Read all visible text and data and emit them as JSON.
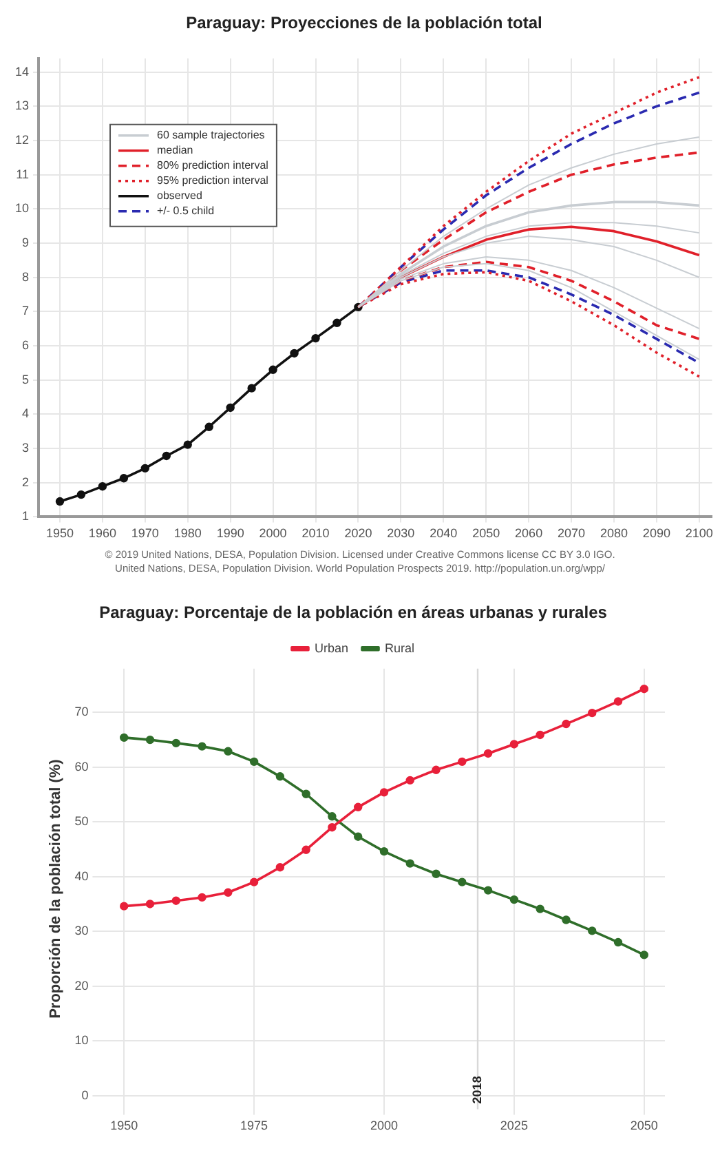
{
  "chart_data": [
    {
      "type": "line",
      "title": "Paraguay: Proyecciones de la población total",
      "grid": true,
      "legend": "top left",
      "xlim": [
        1945,
        2103
      ],
      "xticks": [
        1950,
        1960,
        1970,
        1980,
        1990,
        2000,
        2010,
        2020,
        2030,
        2040,
        2050,
        2060,
        2070,
        2080,
        2090,
        2100
      ],
      "ylim": [
        1,
        14.4
      ],
      "yticks": [
        1,
        2,
        3,
        4,
        5,
        6,
        7,
        8,
        9,
        10,
        11,
        12,
        13,
        14
      ],
      "series": [
        {
          "name": "60 sample trajectories",
          "color": "#c8cdd2",
          "line_style": "solid",
          "marker": "none",
          "x": [
            2020,
            2030,
            2040,
            2050,
            2060,
            2070,
            2080,
            2090,
            2100
          ],
          "values": [
            7.13,
            8.1,
            8.9,
            9.5,
            9.9,
            10.1,
            10.2,
            10.2,
            10.1
          ]
        },
        {
          "color": "#c8cdd2",
          "line_style": "solid",
          "marker": "none",
          "x": [
            2020,
            2030,
            2040,
            2050,
            2060,
            2070,
            2080,
            2090,
            2100
          ],
          "values": [
            7.13,
            8.0,
            8.6,
            9.0,
            9.2,
            9.1,
            8.9,
            8.5,
            8.0
          ]
        },
        {
          "color": "#c8cdd2",
          "line_style": "solid",
          "marker": "none",
          "x": [
            2020,
            2030,
            2040,
            2050,
            2060,
            2070,
            2080,
            2090,
            2100
          ],
          "values": [
            7.13,
            7.95,
            8.4,
            8.6,
            8.5,
            8.2,
            7.7,
            7.1,
            6.5
          ]
        },
        {
          "color": "#c8cdd2",
          "line_style": "solid",
          "marker": "none",
          "x": [
            2020,
            2030,
            2040,
            2050,
            2060,
            2070,
            2080,
            2090,
            2100
          ],
          "values": [
            7.13,
            8.2,
            9.2,
            10.0,
            10.7,
            11.2,
            11.6,
            11.9,
            12.1
          ]
        },
        {
          "color": "#c8cdd2",
          "line_style": "solid",
          "marker": "none",
          "x": [
            2020,
            2030,
            2040,
            2050,
            2060,
            2070,
            2080,
            2090,
            2100
          ],
          "values": [
            7.13,
            8.05,
            8.7,
            9.2,
            9.5,
            9.6,
            9.6,
            9.5,
            9.3
          ]
        },
        {
          "color": "#c8cdd2",
          "line_style": "solid",
          "marker": "none",
          "x": [
            2020,
            2030,
            2040,
            2050,
            2060,
            2070,
            2080,
            2090,
            2100
          ],
          "values": [
            7.13,
            7.9,
            8.3,
            8.4,
            8.2,
            7.7,
            7.0,
            6.3,
            5.6
          ]
        },
        {
          "name": "median",
          "color": "#e0202a",
          "line_style": "solid",
          "marker": "none",
          "x": [
            2020,
            2030,
            2040,
            2050,
            2060,
            2070,
            2080,
            2090,
            2100
          ],
          "values": [
            7.13,
            8.0,
            8.6,
            9.1,
            9.4,
            9.48,
            9.35,
            9.05,
            8.65
          ]
        },
        {
          "name": "80% prediction interval",
          "color": "#e0202a",
          "line_style": "dashed",
          "marker": "none",
          "x": [
            2020,
            2030,
            2040,
            2050,
            2060,
            2070,
            2080,
            2090,
            2100
          ],
          "values": [
            7.13,
            8.2,
            9.1,
            9.9,
            10.5,
            11.0,
            11.3,
            11.5,
            11.65
          ]
        },
        {
          "color": "#e0202a",
          "line_style": "dashed",
          "marker": "none",
          "x": [
            2020,
            2030,
            2040,
            2050,
            2060,
            2070,
            2080,
            2090,
            2100
          ],
          "values": [
            7.13,
            7.9,
            8.3,
            8.45,
            8.3,
            7.9,
            7.3,
            6.6,
            6.2
          ]
        },
        {
          "name": "95% prediction interval",
          "color": "#e0202a",
          "line_style": "dotted",
          "marker": "none",
          "x": [
            2020,
            2030,
            2040,
            2050,
            2060,
            2070,
            2080,
            2090,
            2100
          ],
          "values": [
            7.13,
            8.3,
            9.5,
            10.5,
            11.4,
            12.2,
            12.8,
            13.4,
            13.85
          ]
        },
        {
          "color": "#e0202a",
          "line_style": "dotted",
          "marker": "none",
          "x": [
            2020,
            2030,
            2040,
            2050,
            2060,
            2070,
            2080,
            2090,
            2100
          ],
          "values": [
            7.13,
            7.8,
            8.1,
            8.15,
            7.9,
            7.3,
            6.6,
            5.8,
            5.1
          ]
        },
        {
          "name": "observed",
          "color": "#111111",
          "line_style": "solid",
          "marker": "circle",
          "x": [
            1950,
            1955,
            1960,
            1965,
            1970,
            1975,
            1980,
            1985,
            1990,
            1995,
            2000,
            2005,
            2010,
            2015,
            2020
          ],
          "values": [
            1.45,
            1.65,
            1.89,
            2.13,
            2.42,
            2.78,
            3.11,
            3.63,
            4.19,
            4.76,
            5.3,
            5.78,
            6.22,
            6.67,
            7.13
          ]
        },
        {
          "name": "+/- 0.5 child",
          "color": "#2a2ab0",
          "line_style": "dashed",
          "marker": "none",
          "x": [
            2020,
            2030,
            2040,
            2050,
            2060,
            2070,
            2080,
            2090,
            2100
          ],
          "values": [
            7.13,
            8.3,
            9.4,
            10.4,
            11.2,
            11.9,
            12.5,
            13.0,
            13.4
          ]
        },
        {
          "color": "#2a2ab0",
          "line_style": "dashed",
          "marker": "none",
          "x": [
            2020,
            2030,
            2040,
            2050,
            2060,
            2070,
            2080,
            2090,
            2100
          ],
          "values": [
            7.13,
            7.85,
            8.2,
            8.2,
            8.0,
            7.5,
            6.9,
            6.2,
            5.5
          ]
        }
      ],
      "annotations": [
        "© 2019 United Nations, DESA, Population Division. Licensed under Creative Commons license CC BY 3.0 IGO.",
        "United Nations, DESA, Population Division. World Population Prospects 2019. http://population.un.org/wpp/"
      ]
    },
    {
      "type": "line",
      "title": "Paraguay: Porcentaje de la población en áreas urbanas y rurales",
      "ylabel": "Proporción de la población total (%)",
      "grid": true,
      "legend": "top",
      "marker": "circle",
      "x": [
        1950,
        1955,
        1960,
        1965,
        1970,
        1975,
        1980,
        1985,
        1990,
        1995,
        2000,
        2005,
        2010,
        2015,
        2020,
        2025,
        2030,
        2035,
        2040,
        2045,
        2050
      ],
      "xlim": [
        1945,
        2054
      ],
      "xticks": [
        1950,
        1975,
        2000,
        2025,
        2050
      ],
      "ylim": [
        -2.5,
        78
      ],
      "yticks": [
        0,
        10,
        20,
        30,
        40,
        50,
        60,
        70
      ],
      "series": [
        {
          "name": "Urban",
          "color": "#e8203a",
          "values": [
            34.6,
            35.0,
            35.6,
            36.2,
            37.1,
            39.0,
            41.7,
            44.9,
            49.0,
            52.7,
            55.4,
            57.6,
            59.5,
            61.0,
            62.5,
            64.2,
            65.9,
            67.9,
            69.9,
            72.0,
            74.3
          ]
        },
        {
          "name": "Rural",
          "color": "#2f6e2a",
          "values": [
            65.4,
            65.0,
            64.4,
            63.8,
            62.9,
            61.0,
            58.3,
            55.1,
            51.0,
            47.3,
            44.6,
            42.4,
            40.5,
            39.0,
            37.5,
            35.8,
            34.1,
            32.1,
            30.1,
            28.0,
            25.7
          ]
        }
      ],
      "ref_lines": [
        {
          "axis": "x",
          "value": 2018,
          "label": "2018",
          "color": "#d8d8d8"
        }
      ]
    }
  ]
}
